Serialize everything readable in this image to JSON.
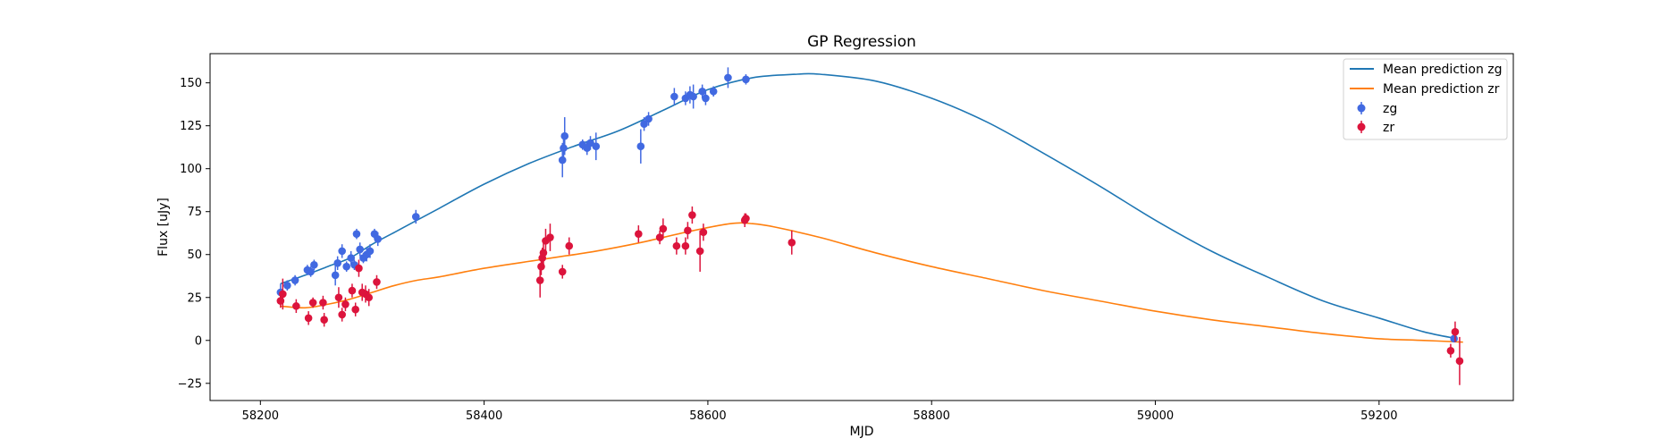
{
  "chart_data": {
    "type": "scatter",
    "title": "GP Regression",
    "xlabel": "MJD",
    "ylabel": "Flux [uJy]",
    "xlim": [
      58155,
      59320
    ],
    "ylim": [
      -35,
      167
    ],
    "xticks": [
      58200,
      58400,
      58600,
      58800,
      59000,
      59200
    ],
    "yticks": [
      -25,
      0,
      25,
      50,
      75,
      100,
      125,
      150
    ],
    "grid": false,
    "legend_position": "top-right",
    "colors": {
      "zg_points": "#4169e1",
      "zr_points": "#dc143c",
      "zg_line": "#1f77b4",
      "zr_line": "#ff7f0e"
    },
    "lines": [
      {
        "name": "Mean prediction zg",
        "color": "#1f77b4",
        "x": [
          58218,
          58240,
          58260,
          58280,
          58300,
          58320,
          58340,
          58360,
          58400,
          58440,
          58480,
          58520,
          58560,
          58600,
          58640,
          58680,
          58700,
          58750,
          58800,
          58850,
          58900,
          58950,
          59000,
          59050,
          59100,
          59150,
          59200,
          59240,
          59270
        ],
        "y": [
          33,
          38,
          43,
          48,
          56,
          63,
          70,
          77,
          91,
          103,
          113,
          122,
          134,
          146,
          153,
          155,
          155,
          151,
          141,
          127,
          109,
          90,
          70,
          52,
          37,
          23,
          13,
          5,
          1
        ]
      },
      {
        "name": "Mean prediction zr",
        "color": "#ff7f0e",
        "x": [
          58218,
          58240,
          58260,
          58280,
          58300,
          58320,
          58340,
          58360,
          58400,
          58450,
          58500,
          58540,
          58580,
          58620,
          58640,
          58660,
          58700,
          58750,
          58800,
          58850,
          58900,
          58950,
          59000,
          59050,
          59100,
          59150,
          59200,
          59240,
          59275
        ],
        "y": [
          20,
          19,
          21,
          24,
          28,
          32,
          35,
          37,
          42,
          47,
          52,
          57,
          63,
          68,
          68,
          66,
          60,
          51,
          43,
          36,
          29,
          23,
          17,
          12,
          8,
          4,
          1,
          0,
          -1
        ]
      }
    ],
    "series": [
      {
        "name": "zg",
        "color": "#4169e1",
        "x": [
          58218,
          58224,
          58231,
          58242,
          58245,
          58248,
          58267,
          58269,
          58273,
          58277,
          58281,
          58284,
          58286,
          58289,
          58292,
          58295,
          58298,
          58302,
          58305,
          58339,
          58470,
          58471,
          58472,
          58488,
          58492,
          58495,
          58500,
          58540,
          58543,
          58547,
          58570,
          58580,
          58584,
          58587,
          58595,
          58598,
          58605,
          58618,
          58634,
          59267
        ],
        "y": [
          28,
          32,
          35,
          41,
          40,
          44,
          38,
          45,
          52,
          43,
          48,
          44,
          62,
          53,
          48,
          50,
          52,
          62,
          59,
          72,
          105,
          112,
          119,
          114,
          112,
          115,
          113,
          113,
          126,
          129,
          142,
          141,
          143,
          142,
          145,
          141,
          145,
          153,
          152,
          1
        ],
        "err": [
          5,
          3,
          3,
          3,
          3,
          3,
          6,
          4,
          4,
          3,
          4,
          3,
          3,
          4,
          3,
          4,
          4,
          3,
          4,
          4,
          10,
          6,
          11,
          3,
          4,
          4,
          8,
          10,
          4,
          4,
          5,
          4,
          5,
          7,
          4,
          4,
          3,
          6,
          3,
          2
        ]
      },
      {
        "name": "zr",
        "color": "#dc143c",
        "x": [
          58218,
          58220,
          58232,
          58243,
          58247,
          58256,
          58257,
          58270,
          58273,
          58276,
          58282,
          58285,
          58288,
          58291,
          58294,
          58297,
          58304,
          58450,
          58451,
          58452,
          58453,
          58455,
          58459,
          58470,
          58476,
          58538,
          58557,
          58560,
          58572,
          58580,
          58582,
          58586,
          58593,
          58596,
          58633,
          58634,
          58675,
          59264,
          59268,
          59272
        ],
        "y": [
          23,
          27,
          20,
          13,
          22,
          22,
          12,
          25,
          15,
          21,
          29,
          18,
          42,
          28,
          27,
          25,
          34,
          35,
          43,
          48,
          51,
          58,
          60,
          40,
          55,
          62,
          60,
          65,
          55,
          55,
          64,
          73,
          52,
          63,
          70,
          71,
          57,
          -6,
          5,
          -12
        ],
        "err": [
          4,
          9,
          4,
          4,
          3,
          4,
          4,
          6,
          4,
          4,
          4,
          4,
          5,
          5,
          5,
          5,
          4,
          10,
          5,
          6,
          7,
          7,
          8,
          4,
          5,
          5,
          4,
          6,
          5,
          5,
          5,
          5,
          12,
          5,
          4,
          3,
          7,
          4,
          6,
          14
        ]
      }
    ]
  }
}
